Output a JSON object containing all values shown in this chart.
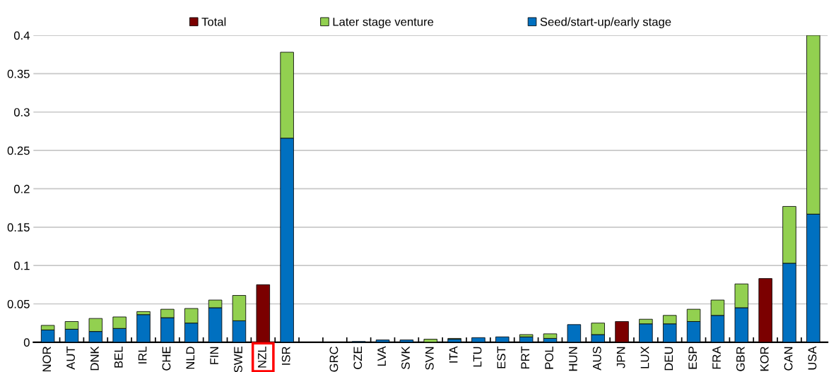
{
  "chart_data": {
    "type": "bar",
    "stacked": true,
    "categories": [
      "NOR",
      "AUT",
      "DNK",
      "BEL",
      "IRL",
      "CHE",
      "NLD",
      "FIN",
      "SWE",
      "NZL",
      "ISR",
      null,
      "GRC",
      "CZE",
      "LVA",
      "SVK",
      "SVN",
      "ITA",
      "LTU",
      "EST",
      "PRT",
      "POL",
      "HUN",
      "AUS",
      "JPN",
      "LUX",
      "DEU",
      "ESP",
      "FRA",
      "GBR",
      "KOR",
      "CAN",
      "USA"
    ],
    "series": [
      {
        "name": "Seed/start-up/early stage",
        "color": "#0070c0",
        "values": [
          0.016,
          0.017,
          0.014,
          0.018,
          0.036,
          0.032,
          0.025,
          0.045,
          0.028,
          null,
          0.266,
          null,
          null,
          0.001,
          0.003,
          0.003,
          null,
          0.004,
          0.006,
          0.007,
          0.007,
          0.005,
          0.023,
          0.01,
          null,
          0.024,
          0.024,
          0.027,
          0.035,
          0.045,
          null,
          0.103,
          0.167
        ]
      },
      {
        "name": "Later stage venture",
        "color": "#92d050",
        "values": [
          0.006,
          0.01,
          0.017,
          0.015,
          0.004,
          0.011,
          0.019,
          0.01,
          0.033,
          null,
          0.112,
          null,
          null,
          null,
          null,
          null,
          0.004,
          0.001,
          null,
          null,
          0.003,
          0.006,
          null,
          0.015,
          null,
          0.006,
          0.011,
          0.016,
          0.02,
          0.031,
          null,
          0.074,
          0.233
        ]
      },
      {
        "name": "Total",
        "color": "#7b0000",
        "values": [
          null,
          null,
          null,
          null,
          null,
          null,
          null,
          null,
          null,
          0.075,
          null,
          null,
          null,
          null,
          null,
          null,
          null,
          null,
          null,
          null,
          null,
          null,
          null,
          null,
          0.027,
          null,
          null,
          null,
          null,
          null,
          0.083,
          null,
          null
        ]
      }
    ],
    "ylim": [
      0,
      0.4
    ],
    "yticks": [
      0,
      0.05,
      0.1,
      0.15,
      0.2,
      0.25,
      0.3,
      0.35,
      0.4
    ],
    "grid": "y",
    "legend": "top"
  }
}
